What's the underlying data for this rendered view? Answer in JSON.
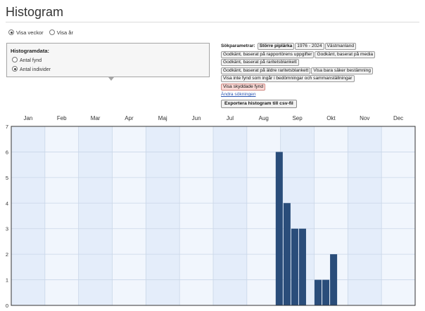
{
  "page": {
    "title": "Histogram"
  },
  "period_toggle": {
    "options": [
      {
        "label": "Visa veckor",
        "checked": true
      },
      {
        "label": "Visa år",
        "checked": false
      }
    ]
  },
  "histogram_data": {
    "heading": "Histogramdata:",
    "options": [
      {
        "label": "Antal fynd",
        "checked": false
      },
      {
        "label": "Antal individer",
        "checked": true
      }
    ]
  },
  "search_params": {
    "label": "Sökparametrar:",
    "tags": [
      {
        "text": "Större piplärka",
        "style": "bold"
      },
      {
        "text": "1976 - 2024",
        "style": "normal"
      },
      {
        "text": "Västmanland",
        "style": "normal"
      },
      {
        "text": "Godkänt, baserat på rapportörens uppgifter",
        "style": "normal"
      },
      {
        "text": "Godkänt, baserat på media",
        "style": "normal"
      },
      {
        "text": "Godkänt, baserat på raritetsblankett",
        "style": "normal"
      },
      {
        "text": "Godkänt, baserat på äldre raritetsblankett",
        "style": "normal"
      },
      {
        "text": "Visa bara säker bestämning",
        "style": "normal"
      },
      {
        "text": "Visa inte fynd som ingår i bedömningar och sammanställningar",
        "style": "normal"
      },
      {
        "text": "Visa skyddade fynd",
        "style": "warn"
      }
    ],
    "change_link": "Ändra sökningen"
  },
  "export_button": {
    "label": "Exportera histogram till csv-fil"
  },
  "colors": {
    "bar": "#2a4d7a",
    "plot_bg": "#f1f6fd",
    "grid": "#c9d6e8",
    "axis": "#333333"
  },
  "chart_data": {
    "type": "bar",
    "title": "",
    "xlabel": "",
    "ylabel": "",
    "months": [
      "Jan",
      "Feb",
      "Mar",
      "Apr",
      "Maj",
      "Jun",
      "Jul",
      "Aug",
      "Sep",
      "Okt",
      "Nov",
      "Dec"
    ],
    "y_ticks": [
      0,
      1,
      2,
      3,
      4,
      5,
      6,
      7
    ],
    "ylim": [
      0,
      7
    ],
    "x_unit": "week",
    "weeks_in_year": 52,
    "grid": true,
    "bars": [
      {
        "week": 35,
        "value": 6
      },
      {
        "week": 36,
        "value": 4
      },
      {
        "week": 37,
        "value": 3
      },
      {
        "week": 38,
        "value": 3
      },
      {
        "week": 40,
        "value": 1
      },
      {
        "week": 41,
        "value": 1
      },
      {
        "week": 42,
        "value": 2
      }
    ]
  }
}
